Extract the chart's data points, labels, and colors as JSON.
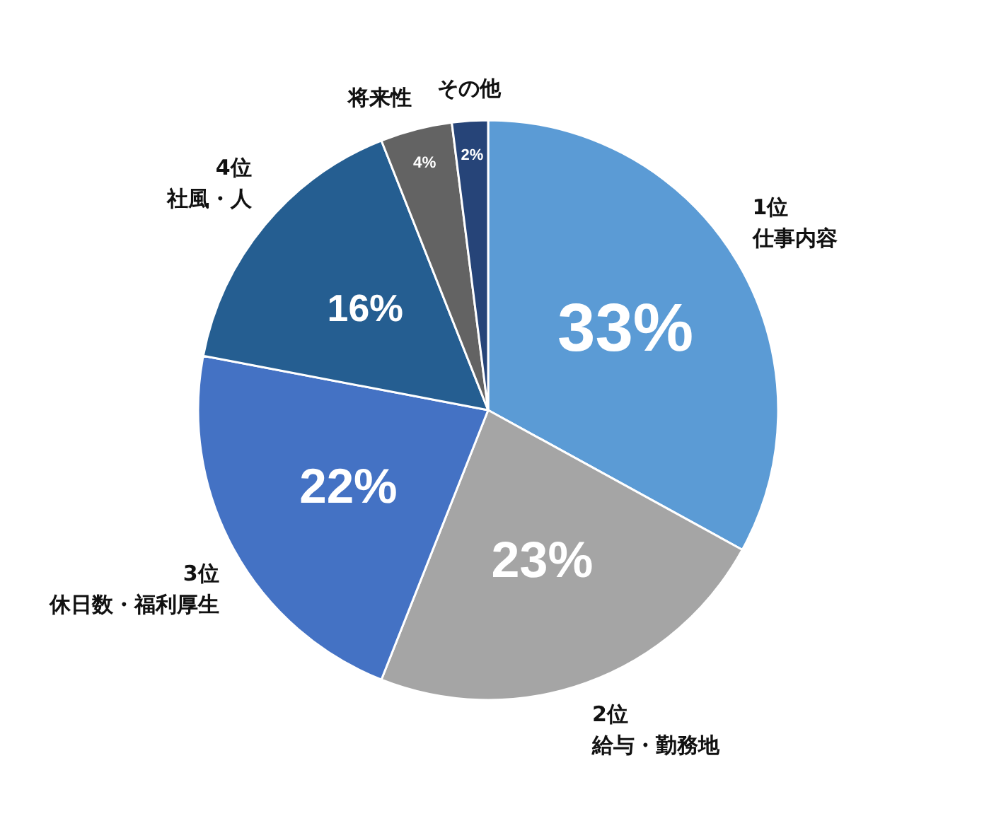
{
  "chart_data": {
    "type": "pie",
    "categories": [
      "1位仕事内容",
      "2位給与・勤務地",
      "3位休日数・福利厚生",
      "4位社風・人",
      "将来性",
      "その他"
    ],
    "values": [
      33,
      23,
      22,
      16,
      4,
      2
    ],
    "value_labels": [
      "33%",
      "23%",
      "22%",
      "16%",
      "4%",
      "2%"
    ],
    "colors": [
      "#5b9bd5",
      "#a5a5a5",
      "#4472c4",
      "#255e91",
      "#636363",
      "#264478"
    ],
    "legend": false
  }
}
